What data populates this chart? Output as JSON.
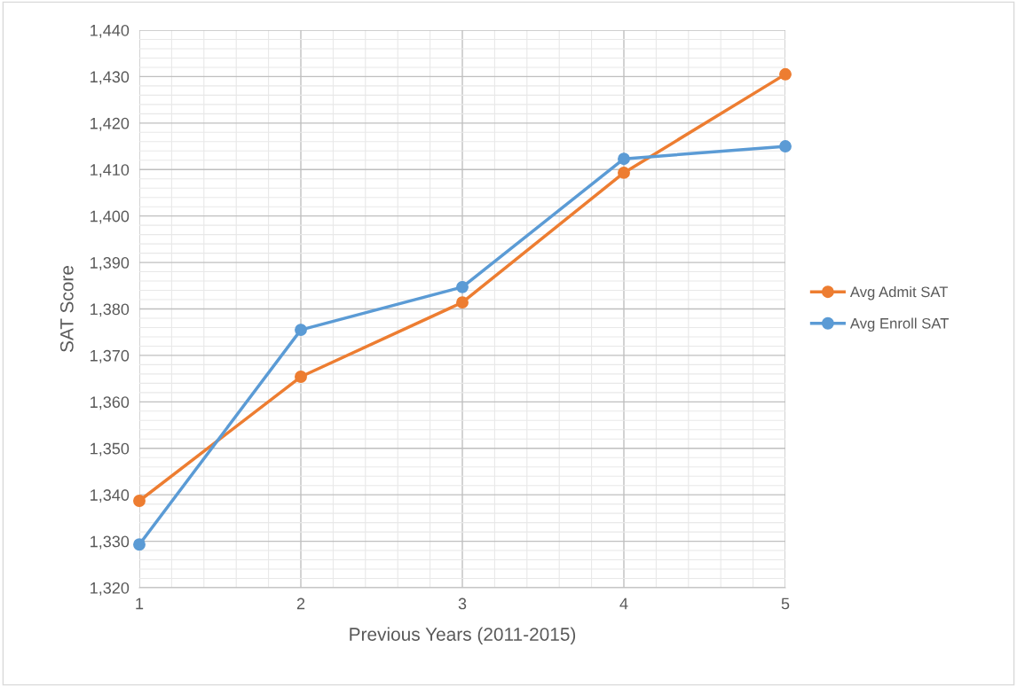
{
  "chart_data": {
    "type": "line",
    "xlabel": "Previous Years (2011-2015)",
    "ylabel": "SAT Score",
    "x": [
      1,
      2,
      3,
      4,
      5
    ],
    "series": [
      {
        "name": "Avg Admit SAT",
        "color": "#ed7d31",
        "values": [
          1338.7,
          1365.4,
          1381.4,
          1409.3,
          1430.5
        ]
      },
      {
        "name": "Avg Enroll SAT",
        "color": "#5b9bd5",
        "values": [
          1329.3,
          1375.5,
          1384.7,
          1412.3,
          1415.0
        ]
      }
    ],
    "xlim": [
      1,
      5
    ],
    "xticks": [
      1,
      2,
      3,
      4,
      5
    ],
    "ylim": [
      1320,
      1440
    ],
    "yticks": [
      {
        "value": 1320,
        "label": "1,320"
      },
      {
        "value": 1330,
        "label": "1,330"
      },
      {
        "value": 1340,
        "label": "1,340"
      },
      {
        "value": 1350,
        "label": "1,350"
      },
      {
        "value": 1360,
        "label": "1,360"
      },
      {
        "value": 1370,
        "label": "1,370"
      },
      {
        "value": 1380,
        "label": "1,380"
      },
      {
        "value": 1390,
        "label": "1,390"
      },
      {
        "value": 1400,
        "label": "1,400"
      },
      {
        "value": 1410,
        "label": "1,410"
      },
      {
        "value": 1420,
        "label": "1,420"
      },
      {
        "value": 1430,
        "label": "1,430"
      },
      {
        "value": 1440,
        "label": "1,440"
      }
    ],
    "grid": true,
    "legend": "right",
    "marker": "circle",
    "line_style": "solid"
  }
}
